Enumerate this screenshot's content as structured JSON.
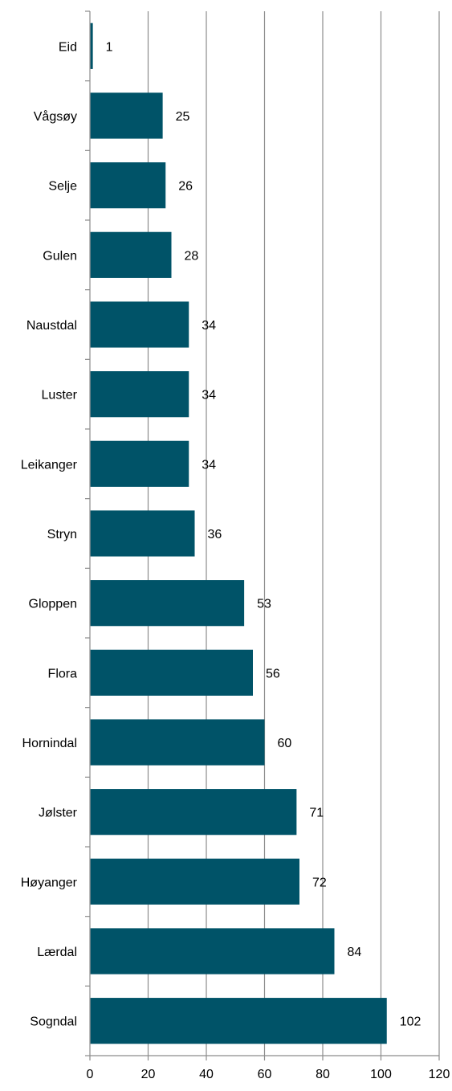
{
  "chart_data": {
    "type": "bar",
    "orientation": "horizontal",
    "categories": [
      "Eid",
      "Vågsøy",
      "Selje",
      "Gulen",
      "Naustdal",
      "Luster",
      "Leikanger",
      "Stryn",
      "Gloppen",
      "Flora",
      "Hornindal",
      "Jølster",
      "Høyanger",
      "Lærdal",
      "Sogndal"
    ],
    "values": [
      1,
      25,
      26,
      28,
      34,
      34,
      34,
      36,
      53,
      56,
      60,
      71,
      72,
      84,
      102
    ],
    "data_labels": [
      "1",
      "25",
      "26",
      "28",
      "34",
      "34",
      "34",
      "36",
      "53",
      "56",
      "60",
      "71",
      "72",
      "84",
      "102"
    ],
    "xlim": [
      0,
      120
    ],
    "x_ticks": [
      0,
      20,
      40,
      60,
      80,
      100,
      120
    ],
    "x_tick_labels": [
      "0",
      "20",
      "40",
      "60",
      "80",
      "100",
      "120"
    ],
    "grid": "vertical",
    "legend": "none",
    "bar_color": "#005368",
    "grid_color": "#8c8c8c",
    "axis_color": "#8c8c8c"
  }
}
